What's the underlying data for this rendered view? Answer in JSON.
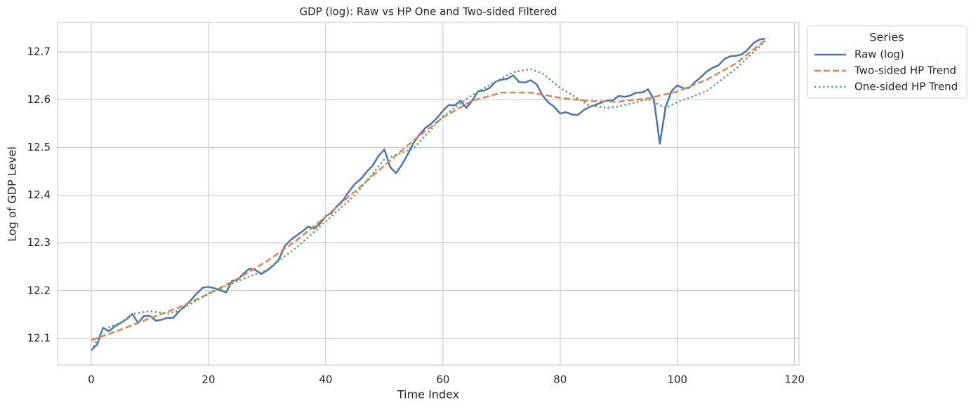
{
  "chart_data": {
    "type": "line",
    "title": "GDP (log): Raw vs HP One and Two-sided Filtered",
    "x_label": "Time Index",
    "y_label": "Log of GDP Level",
    "xlim": [
      -5.75,
      120.75
    ],
    "ylim": [
      12.044,
      12.762
    ],
    "xticks": [
      0,
      20,
      40,
      60,
      80,
      100,
      120
    ],
    "yticks": [
      12.1,
      12.2,
      12.3,
      12.4,
      12.5,
      12.6,
      12.7
    ],
    "grid": true,
    "legend_title": "Series",
    "legend_position": "outside-right",
    "series": [
      {
        "name": "Raw (log)",
        "color": "#4c72b0",
        "style": "solid",
        "x": [
          0,
          1,
          2,
          3,
          4,
          5,
          6,
          7,
          8,
          9,
          10,
          11,
          12,
          13,
          14,
          15,
          16,
          17,
          18,
          19,
          20,
          21,
          22,
          23,
          24,
          25,
          26,
          27,
          28,
          29,
          30,
          31,
          32,
          33,
          34,
          35,
          36,
          37,
          38,
          39,
          40,
          41,
          42,
          43,
          44,
          45,
          46,
          47,
          48,
          49,
          50,
          51,
          52,
          53,
          54,
          55,
          56,
          57,
          58,
          59,
          60,
          61,
          62,
          63,
          64,
          65,
          66,
          67,
          68,
          69,
          70,
          71,
          72,
          73,
          74,
          75,
          76,
          77,
          78,
          79,
          80,
          81,
          82,
          83,
          84,
          85,
          86,
          87,
          88,
          89,
          90,
          91,
          92,
          93,
          94,
          95,
          96,
          97,
          98,
          99,
          100,
          101,
          102,
          103,
          104,
          105,
          106,
          107,
          108,
          109,
          110,
          111,
          112,
          113,
          114,
          115
        ],
        "values": [
          12.075,
          12.087,
          12.122,
          12.115,
          12.125,
          12.132,
          12.14,
          12.151,
          12.132,
          12.147,
          12.147,
          12.137,
          12.139,
          12.143,
          12.143,
          12.157,
          12.168,
          12.18,
          12.194,
          12.206,
          12.208,
          12.205,
          12.201,
          12.196,
          12.22,
          12.223,
          12.236,
          12.246,
          12.243,
          12.235,
          12.242,
          12.252,
          12.265,
          12.293,
          12.306,
          12.315,
          12.324,
          12.334,
          12.33,
          12.34,
          12.356,
          12.363,
          12.378,
          12.39,
          12.408,
          12.424,
          12.434,
          12.449,
          12.462,
          12.482,
          12.496,
          12.459,
          12.446,
          12.464,
          12.486,
          12.51,
          12.527,
          12.541,
          12.55,
          12.562,
          12.577,
          12.589,
          12.588,
          12.598,
          12.583,
          12.598,
          12.618,
          12.619,
          12.625,
          12.638,
          12.642,
          12.644,
          12.651,
          12.637,
          12.636,
          12.641,
          12.632,
          12.609,
          12.594,
          12.585,
          12.571,
          12.574,
          12.569,
          12.568,
          12.578,
          12.585,
          12.589,
          12.594,
          12.598,
          12.599,
          12.608,
          12.606,
          12.609,
          12.615,
          12.615,
          12.622,
          12.601,
          12.508,
          12.585,
          12.618,
          12.63,
          12.624,
          12.625,
          12.637,
          12.647,
          12.659,
          12.667,
          12.672,
          12.685,
          12.691,
          12.692,
          12.695,
          12.705,
          12.719,
          12.726,
          12.728
        ]
      },
      {
        "name": "Two-sided HP Trend",
        "color": "#dd8452",
        "style": "dashed",
        "x": [
          0,
          5,
          10,
          15,
          20,
          25,
          30,
          35,
          40,
          45,
          50,
          55,
          60,
          65,
          70,
          75,
          80,
          85,
          90,
          95,
          100,
          105,
          110,
          115
        ],
        "values": [
          12.096,
          12.118,
          12.142,
          12.165,
          12.193,
          12.225,
          12.262,
          12.305,
          12.355,
          12.408,
          12.462,
          12.515,
          12.563,
          12.598,
          12.615,
          12.615,
          12.604,
          12.597,
          12.596,
          12.603,
          12.617,
          12.642,
          12.676,
          12.725
        ]
      },
      {
        "name": "One-sided HP Trend",
        "color": "#55a868",
        "style": "dotted",
        "x": [
          0,
          2,
          5,
          7,
          10,
          13,
          15,
          20,
          25,
          30,
          35,
          40,
          45,
          50,
          55,
          60,
          65,
          70,
          72,
          75,
          77,
          80,
          85,
          88,
          90,
          95,
          98,
          100,
          105,
          110,
          115
        ],
        "values": [
          12.075,
          12.118,
          12.133,
          12.151,
          12.157,
          12.152,
          12.158,
          12.194,
          12.22,
          12.244,
          12.29,
          12.345,
          12.4,
          12.475,
          12.498,
          12.565,
          12.61,
          12.645,
          12.658,
          12.664,
          12.655,
          12.625,
          12.588,
          12.583,
          12.586,
          12.601,
          12.583,
          12.595,
          12.618,
          12.665,
          12.723
        ]
      }
    ]
  }
}
